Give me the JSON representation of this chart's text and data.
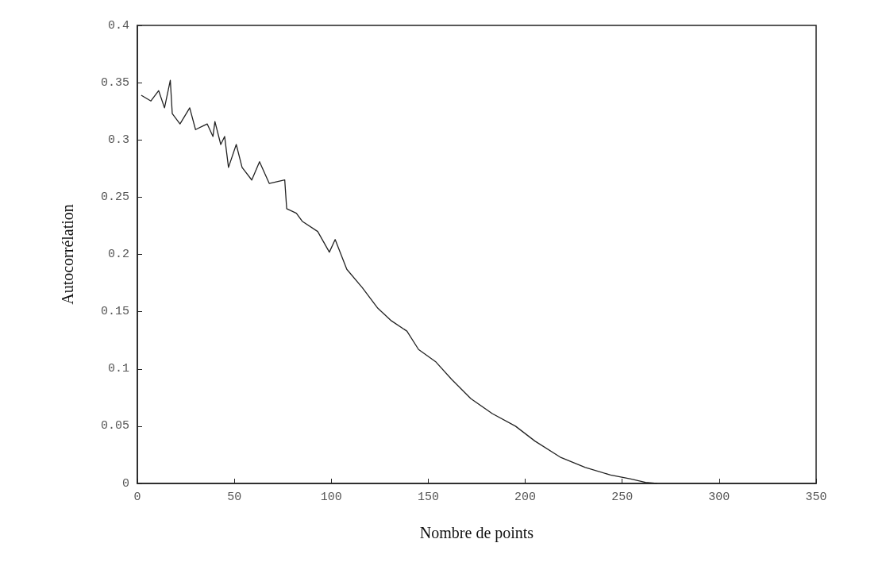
{
  "chart_data": {
    "type": "line",
    "xlabel": "Nombre de points",
    "ylabel": "Autocorrélation",
    "xlim": [
      0,
      350
    ],
    "xticks": [
      0,
      50,
      100,
      150,
      200,
      250,
      300,
      350
    ],
    "ylim": [
      0,
      0.4
    ],
    "yticks": [
      0,
      0.05,
      0.1,
      0.15,
      0.2,
      0.25,
      0.3,
      0.35,
      0.4
    ],
    "grid": false,
    "marker": "none",
    "line_style": "solid",
    "series": [
      {
        "color": "#222222",
        "x": [
          2,
          7,
          11,
          14,
          17,
          18,
          22,
          27,
          30,
          36,
          39,
          40,
          43,
          45,
          47,
          51,
          54,
          59,
          63,
          68,
          76,
          77,
          82,
          85,
          93,
          99,
          102,
          108,
          116,
          124,
          131,
          139,
          145,
          154,
          162,
          172,
          183,
          195,
          205,
          218,
          231,
          244,
          254,
          262,
          268
        ],
        "values": [
          0.339,
          0.334,
          0.343,
          0.328,
          0.352,
          0.323,
          0.314,
          0.328,
          0.309,
          0.314,
          0.303,
          0.316,
          0.296,
          0.303,
          0.276,
          0.296,
          0.276,
          0.265,
          0.281,
          0.262,
          0.265,
          0.24,
          0.236,
          0.229,
          0.22,
          0.202,
          0.213,
          0.187,
          0.171,
          0.153,
          0.142,
          0.133,
          0.117,
          0.106,
          0.091,
          0.074,
          0.061,
          0.05,
          0.037,
          0.023,
          0.014,
          0.0074,
          0.004,
          0.001,
          0
        ]
      }
    ]
  }
}
